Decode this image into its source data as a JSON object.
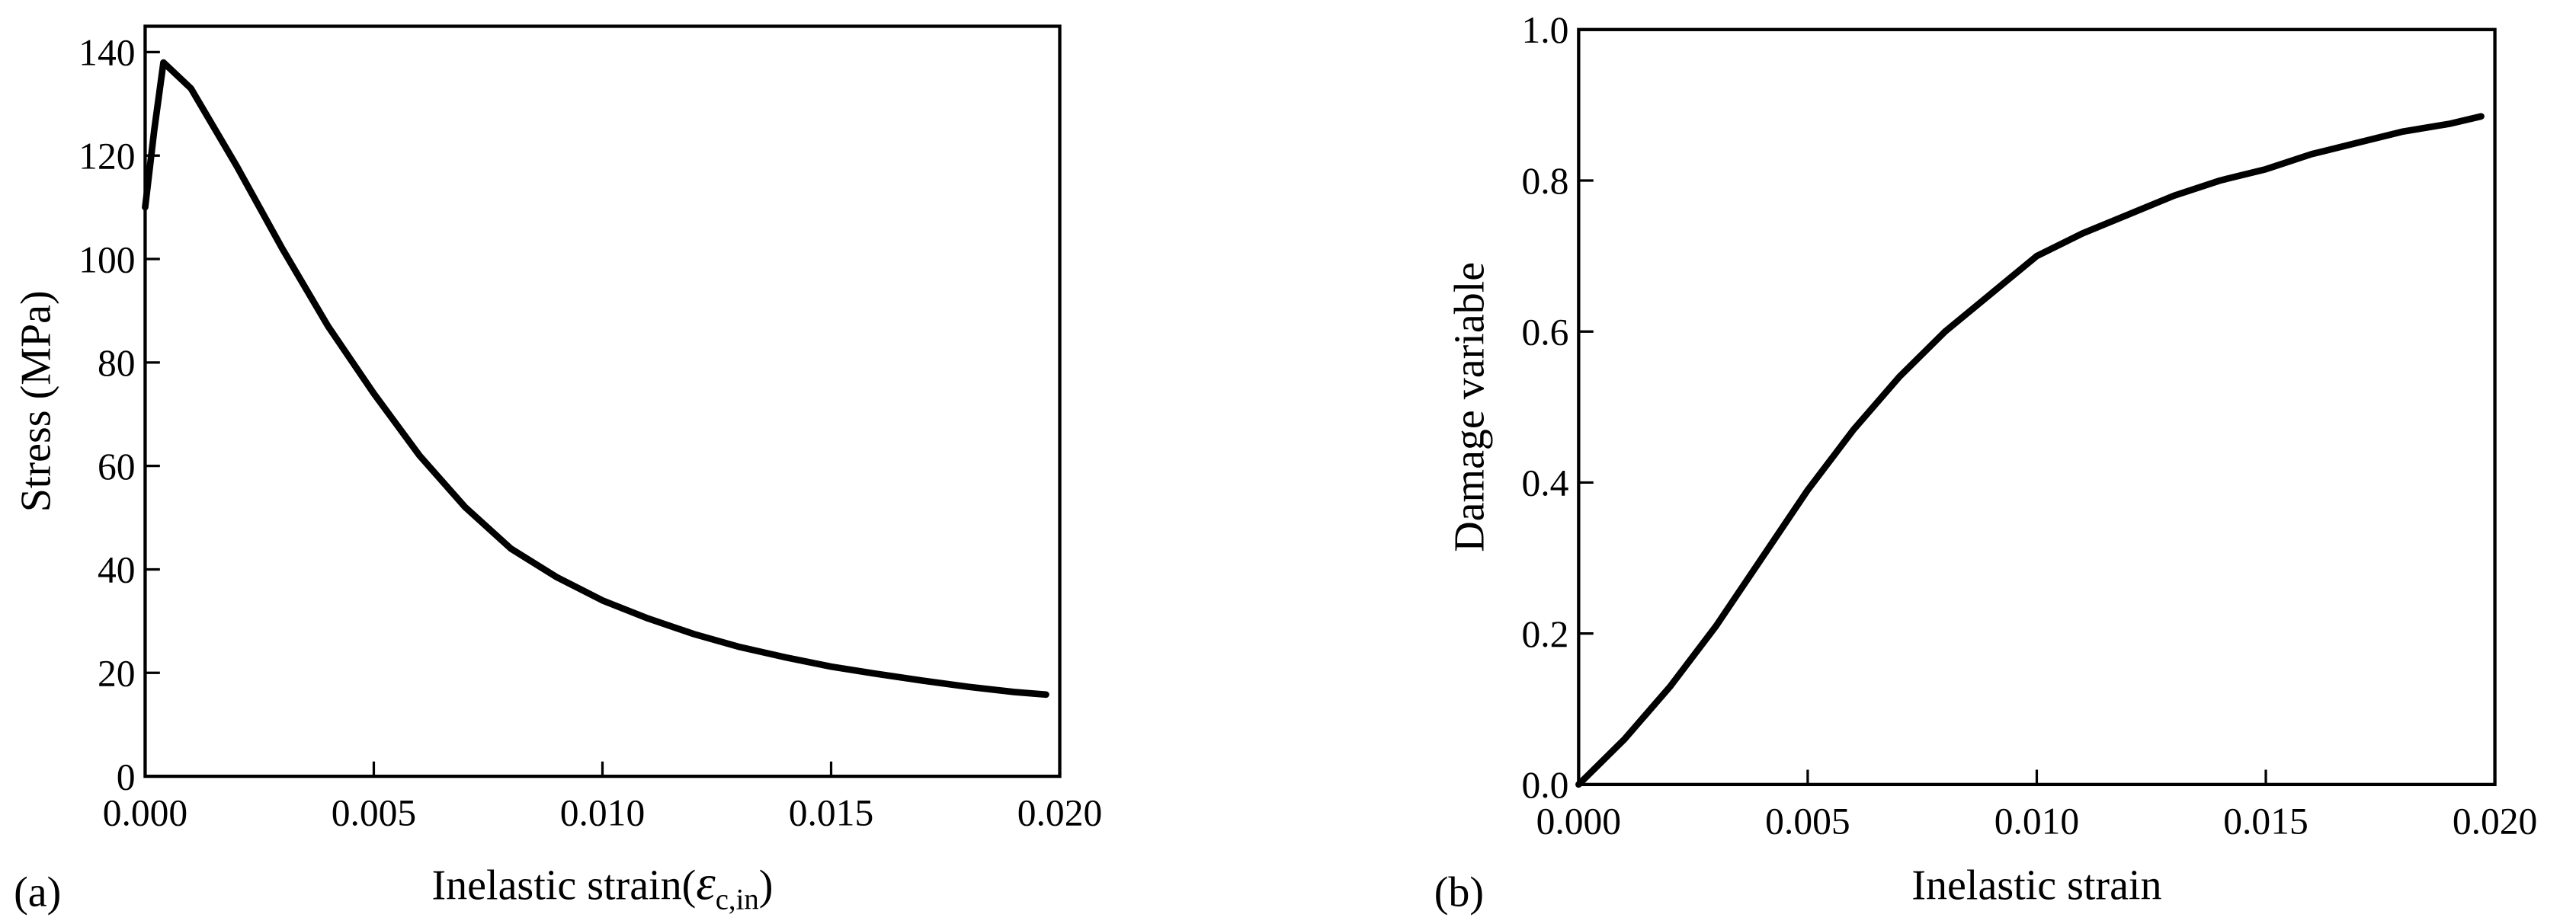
{
  "chart_data": [
    {
      "type": "line",
      "panel_label": "(a)",
      "y_label": "Stress (MPa)",
      "x_label": "Inelastic strain(",
      "x_label_symbol": "ε",
      "x_label_subscript": "c,in",
      "x_label_close": ")",
      "x": [
        0,
        0.0002,
        0.0004,
        0.001,
        0.002,
        0.003,
        0.004,
        0.005,
        0.006,
        0.007,
        0.008,
        0.009,
        0.01,
        0.011,
        0.012,
        0.013,
        0.014,
        0.015,
        0.016,
        0.017,
        0.018,
        0.019,
        0.0197
      ],
      "series": [
        {
          "color": "#000000",
          "values": [
            110,
            125,
            138,
            133,
            118,
            102,
            87,
            74,
            62,
            52,
            44,
            38.5,
            34,
            30.5,
            27.5,
            25,
            23,
            21.2,
            19.8,
            18.5,
            17.3,
            16.3,
            15.8
          ]
        }
      ],
      "xlim": [
        0,
        0.02
      ],
      "ylim": [
        0,
        145
      ],
      "xticks": [
        {
          "value": 0,
          "label": "0.000"
        },
        0.005,
        {
          "value": 0.01,
          "label": "0.010"
        },
        0.015,
        {
          "value": 0.02,
          "label": "0.020"
        }
      ],
      "yticks": [
        0,
        20,
        40,
        60,
        80,
        100,
        120,
        140
      ]
    },
    {
      "type": "line",
      "panel_label": "(b)",
      "y_label": "Damage variable",
      "x_label": "Inelastic strain",
      "x": [
        0,
        0.001,
        0.002,
        0.003,
        0.004,
        0.005,
        0.006,
        0.007,
        0.008,
        0.009,
        0.01,
        0.011,
        0.012,
        0.013,
        0.014,
        0.015,
        0.016,
        0.017,
        0.018,
        0.019,
        0.0197
      ],
      "series": [
        {
          "color": "#000000",
          "values": [
            0,
            0.06,
            0.13,
            0.21,
            0.3,
            0.39,
            0.47,
            0.54,
            0.6,
            0.65,
            0.7,
            0.73,
            0.755,
            0.78,
            0.8,
            0.815,
            0.835,
            0.85,
            0.865,
            0.875,
            0.885
          ]
        }
      ],
      "xlim": [
        0,
        0.02
      ],
      "ylim": [
        0,
        1
      ],
      "xticks": [
        {
          "value": 0,
          "label": "0.000"
        },
        0.005,
        {
          "value": 0.01,
          "label": "0.010"
        },
        0.015,
        {
          "value": 0.02,
          "label": "0.020"
        }
      ],
      "yticks": [
        {
          "value": 0,
          "label": "0.0"
        },
        0.2,
        0.4,
        0.6,
        0.8,
        {
          "value": 1,
          "label": "1.0"
        }
      ]
    }
  ]
}
